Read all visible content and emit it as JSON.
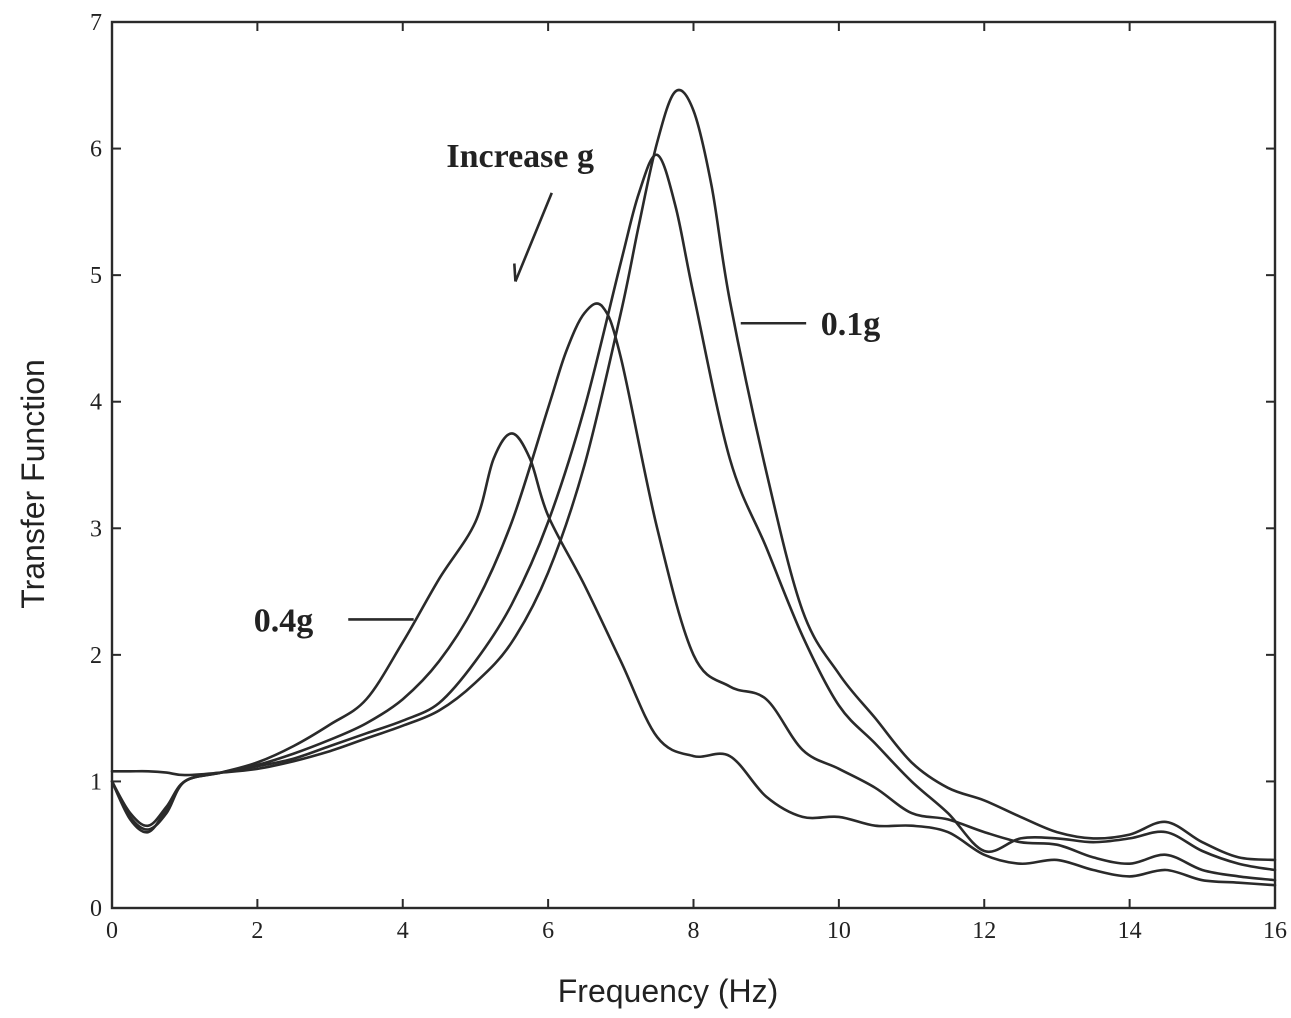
{
  "chart_data": {
    "type": "line",
    "xlabel": "Frequency (Hz)",
    "ylabel": "Transfer Function",
    "xlim": [
      0,
      16
    ],
    "ylim": [
      0,
      7
    ],
    "xticks": [
      0,
      2,
      4,
      6,
      8,
      10,
      12,
      14,
      16
    ],
    "yticks": [
      0,
      1,
      2,
      3,
      4,
      5,
      6,
      7
    ],
    "grid": false,
    "legend": "none",
    "annotations": [
      {
        "text": "Increase g",
        "x": 4.6,
        "y": 5.95,
        "arrow_from": [
          6.05,
          5.65
        ],
        "arrow_to": [
          5.55,
          4.95
        ]
      },
      {
        "text": "0.1g",
        "x": 9.75,
        "y": 4.62,
        "line_from": [
          8.65,
          4.62
        ],
        "line_to": [
          9.55,
          4.62
        ]
      },
      {
        "text": "0.4g",
        "x": 1.95,
        "y": 2.28,
        "line_from": [
          3.25,
          2.28
        ],
        "line_to": [
          4.15,
          2.28
        ]
      }
    ],
    "series": [
      {
        "x": [
          0,
          0.25,
          0.5,
          0.75,
          1,
          1.5,
          2,
          2.5,
          3,
          3.5,
          4,
          4.5,
          5,
          5.5,
          6,
          6.5,
          7,
          7.25,
          7.5,
          7.75,
          8,
          8.25,
          8.5,
          9,
          9.5,
          10,
          10.5,
          11,
          11.5,
          12,
          12.5,
          13,
          13.5,
          14,
          14.5,
          15,
          15.5,
          16
        ],
        "y": [
          1.08,
          1.08,
          1.08,
          1.07,
          1.05,
          1.07,
          1.1,
          1.16,
          1.24,
          1.34,
          1.44,
          1.56,
          1.78,
          2.1,
          2.65,
          3.5,
          4.7,
          5.4,
          6.05,
          6.45,
          6.3,
          5.7,
          4.8,
          3.45,
          2.35,
          1.85,
          1.5,
          1.15,
          0.95,
          0.85,
          0.72,
          0.6,
          0.55,
          0.58,
          0.68,
          0.52,
          0.4,
          0.38
        ]
      },
      {
        "x": [
          0,
          0.25,
          0.5,
          0.75,
          1,
          1.5,
          2,
          2.5,
          3,
          3.5,
          4,
          4.5,
          5,
          5.5,
          6,
          6.5,
          7,
          7.25,
          7.5,
          7.75,
          8,
          8.5,
          9,
          9.5,
          10,
          10.5,
          11,
          11.5,
          12,
          12.5,
          13,
          13.5,
          14,
          14.5,
          15,
          15.5,
          16
        ],
        "y": [
          1.0,
          0.75,
          0.65,
          0.8,
          1.0,
          1.07,
          1.12,
          1.18,
          1.28,
          1.38,
          1.48,
          1.62,
          1.95,
          2.4,
          3.05,
          3.95,
          5.1,
          5.65,
          5.95,
          5.55,
          4.85,
          3.55,
          2.85,
          2.15,
          1.6,
          1.3,
          1.0,
          0.75,
          0.45,
          0.55,
          0.55,
          0.52,
          0.55,
          0.6,
          0.45,
          0.35,
          0.3
        ]
      },
      {
        "x": [
          0,
          0.25,
          0.5,
          0.75,
          1,
          1.5,
          2,
          2.5,
          3,
          3.5,
          4,
          4.5,
          5,
          5.5,
          6,
          6.25,
          6.5,
          6.75,
          7,
          7.5,
          8,
          8.5,
          9,
          9.5,
          10,
          10.5,
          11,
          11.5,
          12,
          12.5,
          13,
          13.5,
          14,
          14.5,
          15,
          15.5,
          16
        ],
        "y": [
          1.0,
          0.72,
          0.62,
          0.75,
          1.0,
          1.07,
          1.13,
          1.22,
          1.33,
          1.46,
          1.65,
          1.95,
          2.4,
          3.05,
          3.95,
          4.4,
          4.7,
          4.75,
          4.35,
          3.0,
          2.0,
          1.75,
          1.65,
          1.25,
          1.1,
          0.95,
          0.75,
          0.7,
          0.6,
          0.52,
          0.5,
          0.4,
          0.35,
          0.42,
          0.3,
          0.25,
          0.22
        ]
      },
      {
        "x": [
          0,
          0.25,
          0.5,
          0.75,
          1,
          1.5,
          2,
          2.5,
          3,
          3.5,
          4,
          4.5,
          5,
          5.25,
          5.5,
          5.75,
          6,
          6.5,
          7,
          7.5,
          8,
          8.5,
          9,
          9.5,
          10,
          10.5,
          11,
          11.5,
          12,
          12.5,
          13,
          13.5,
          14,
          14.5,
          15,
          15.5,
          16
        ],
        "y": [
          1.0,
          0.7,
          0.6,
          0.78,
          1.0,
          1.07,
          1.15,
          1.28,
          1.45,
          1.65,
          2.1,
          2.6,
          3.05,
          3.55,
          3.75,
          3.55,
          3.1,
          2.55,
          1.95,
          1.35,
          1.2,
          1.2,
          0.88,
          0.72,
          0.72,
          0.65,
          0.65,
          0.6,
          0.42,
          0.35,
          0.38,
          0.3,
          0.25,
          0.3,
          0.22,
          0.2,
          0.18
        ]
      }
    ]
  }
}
